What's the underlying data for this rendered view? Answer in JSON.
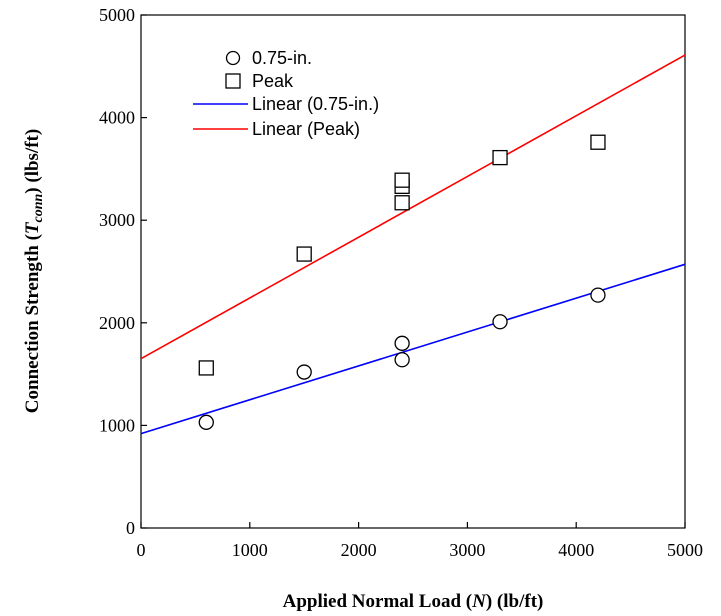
{
  "chart_data": {
    "type": "scatter",
    "xlabel": {
      "main": "Applied Normal Load (",
      "var": "N",
      "tail": ") (lb/ft)"
    },
    "ylabel": {
      "main": "Connection Strength (",
      "var": "T",
      "sub": "conn",
      "tail": ") (lbs/ft)"
    },
    "xlim": [
      0,
      5000
    ],
    "ylim": [
      0,
      5000
    ],
    "xticks": [
      "0",
      "1000",
      "2000",
      "3000",
      "4000",
      "5000"
    ],
    "yticks": [
      "0",
      "1000",
      "2000",
      "3000",
      "4000",
      "5000"
    ],
    "grid": false,
    "legend_position": "top-left",
    "series": [
      {
        "name": "0.75-in.",
        "marker": "circle",
        "color": "#000000",
        "points": [
          [
            600,
            1030
          ],
          [
            1500,
            1520
          ],
          [
            2400,
            1640
          ],
          [
            2400,
            1800
          ],
          [
            3300,
            2010
          ],
          [
            4200,
            2270
          ]
        ]
      },
      {
        "name": "Peak",
        "marker": "square",
        "color": "#000000",
        "points": [
          [
            600,
            1560
          ],
          [
            1500,
            2670
          ],
          [
            2400,
            3170
          ],
          [
            2400,
            3330
          ],
          [
            2400,
            3390
          ],
          [
            3300,
            3610
          ],
          [
            4200,
            3760
          ]
        ]
      }
    ],
    "trendlines": [
      {
        "name": "Linear (0.75-in.)",
        "color": "#0000ff",
        "start": [
          0,
          920
        ],
        "end": [
          5000,
          2570
        ]
      },
      {
        "name": "Linear (Peak)",
        "color": "#ff0000",
        "start": [
          0,
          1650
        ],
        "end": [
          5000,
          4610
        ]
      }
    ]
  }
}
